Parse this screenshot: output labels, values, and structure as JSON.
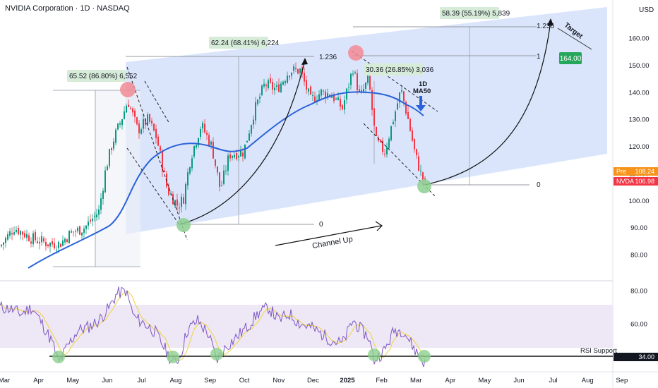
{
  "header": {
    "title": "NVIDIA Corporation · 1D · NASDAQ",
    "currency": "USD"
  },
  "chart_data": {
    "type": "candlestick",
    "price_axis": {
      "range": [
        74,
        168
      ],
      "ticks": [
        160,
        150,
        140,
        130,
        120,
        110,
        100,
        90,
        80
      ]
    },
    "rsi_axis": {
      "range": [
        31,
        91
      ],
      "ticks": [
        80,
        60,
        40
      ]
    },
    "time_axis": {
      "labels": [
        "Mar",
        "Apr",
        "May",
        "Jun",
        "Jul",
        "Aug",
        "Sep",
        "Oct",
        "Nov",
        "Dec",
        "2025",
        "Feb",
        "Mar",
        "Apr",
        "May",
        "Jun",
        "Jul",
        "Aug",
        "Sep"
      ]
    },
    "price_badges": [
      {
        "label": "Pre",
        "value": "108.24",
        "color": "#f7931a"
      },
      {
        "label": "NVDA",
        "value": "106.98",
        "color": "#f23645"
      }
    ],
    "rsi_support_value": "34.00",
    "annotations": {
      "box1": "65.52 (86.80%) 6,552",
      "box2": "62.24 (68.41%) 6,224",
      "box3": "30.36 (26.85%) 3,036",
      "box4": "58.39 (55.19%) 5,839",
      "fib_1236_a": "1.236",
      "fib_1236_b": "1.236",
      "fib_1": "1",
      "fib_0_a": "0",
      "fib_0_b": "0",
      "ma_label_1": "1D",
      "ma_label_2": "MA50",
      "target_label": "Target",
      "target_value": "164.00",
      "channel_label": "Channel Up",
      "rsi_support_label": "RSI Support"
    },
    "colors": {
      "channel": "#d7e2fb",
      "ma50": "#2a62d8",
      "up": "#089981",
      "down": "#f23645",
      "rsi": "#7e57c2",
      "rsi_ma": "#f0d23c",
      "highlight_red": "#f28b94",
      "highlight_green": "#8ccf8f",
      "target_green": "#26a65b"
    }
  }
}
